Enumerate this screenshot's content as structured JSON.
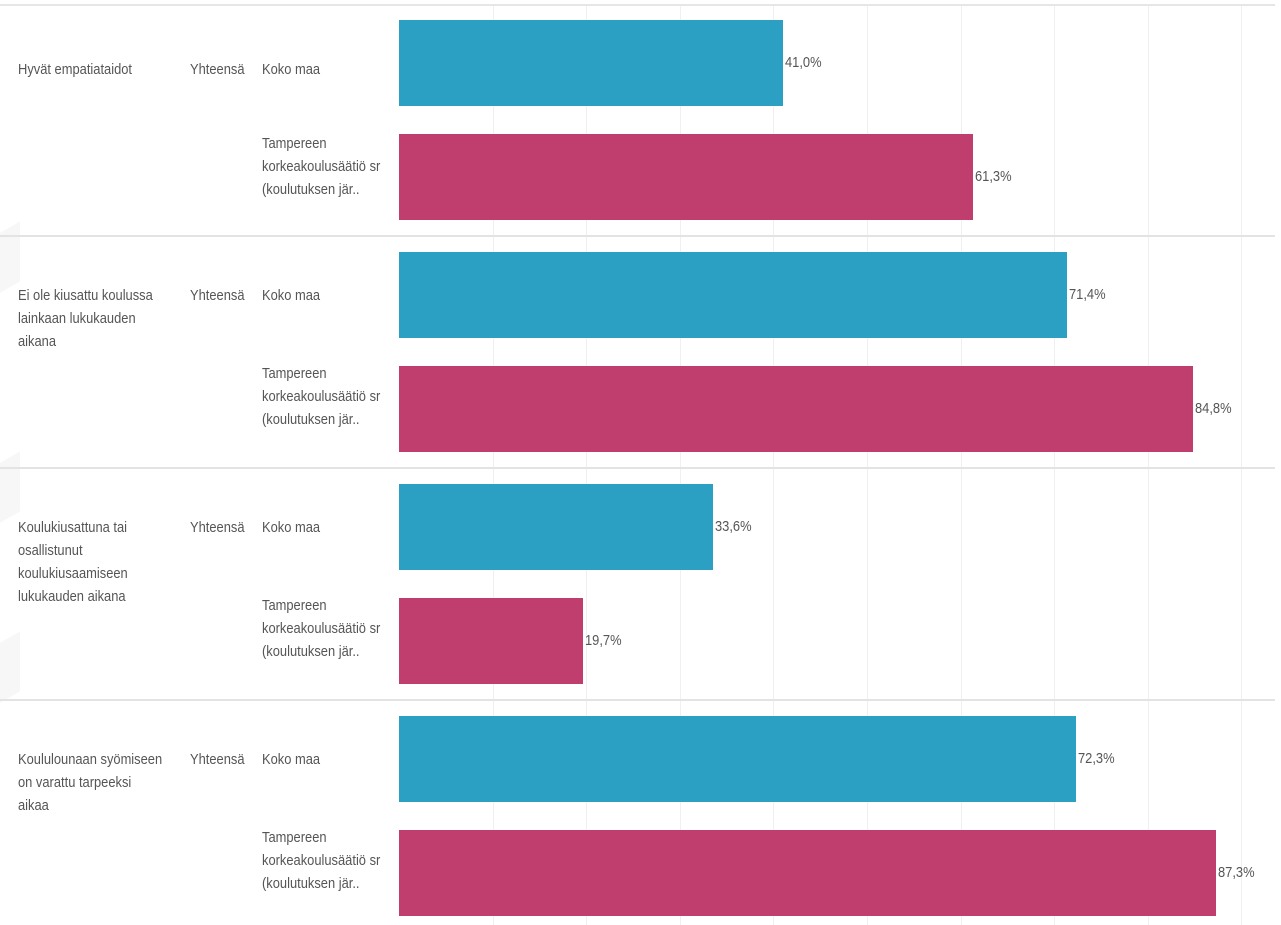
{
  "colors": {
    "koko_maa": "#2ba0c2",
    "tampere": "#bf3e6e"
  },
  "chart_data": {
    "type": "bar",
    "orientation": "horizontal",
    "xlim": [
      0,
      100
    ],
    "grid": true,
    "value_suffix": "%",
    "categories": [
      "Hyvät empatiataidot",
      "Ei ole kiusattu koulussa lainkaan lukukauden aikana",
      "Koulukiusattuna tai osallistunut koulukiusaamiseen lukukauden aikana",
      "Koululounaan syömiseen on varattu tarpeeksi aikaa"
    ],
    "total_label": "Yhteensä",
    "series": [
      {
        "name": "Koko maa",
        "values": [
          41.0,
          71.4,
          33.6,
          72.3
        ],
        "value_labels": [
          "41,0%",
          "71,4%",
          "33,6%",
          "72,3%"
        ]
      },
      {
        "name": "Tampereen korkeakoulusäätiö sr (koulutuksen jär..",
        "values": [
          61.3,
          84.8,
          19.7,
          87.3
        ],
        "value_labels": [
          "61,3%",
          "84,8%",
          "19,7%",
          "87,3%"
        ]
      }
    ]
  },
  "groups": [
    {
      "metric": "Hyvät empatiataidot",
      "total": "Yhteensä",
      "row1_region": "Koko maa",
      "row1_value": "41,0%",
      "row2_region": "Tampereen korkeakoulusäätiö sr (koulutuksen jär..",
      "row2_value": "61,3%"
    },
    {
      "metric": "Ei ole kiusattu koulussa lainkaan lukukauden aikana",
      "total": "Yhteensä",
      "row1_region": "Koko maa",
      "row1_value": "71,4%",
      "row2_region": "Tampereen korkeakoulusäätiö sr (koulutuksen jär..",
      "row2_value": "84,8%"
    },
    {
      "metric": "Koulukiusattuna tai osallistunut koulukiusaamiseen lukukauden aikana",
      "total": "Yhteensä",
      "row1_region": "Koko maa",
      "row1_value": "33,6%",
      "row2_region": "Tampereen korkeakoulusäätiö sr (koulutuksen jär..",
      "row2_value": "19,7%"
    },
    {
      "metric": "Koululounaan syömiseen on varattu tarpeeksi aikaa",
      "total": "Yhteensä",
      "row1_region": "Koko maa",
      "row1_value": "72,3%",
      "row2_region": "Tampereen korkeakoulusäätiö sr (koulutuksen jär..",
      "row2_value": "87,3%"
    }
  ]
}
